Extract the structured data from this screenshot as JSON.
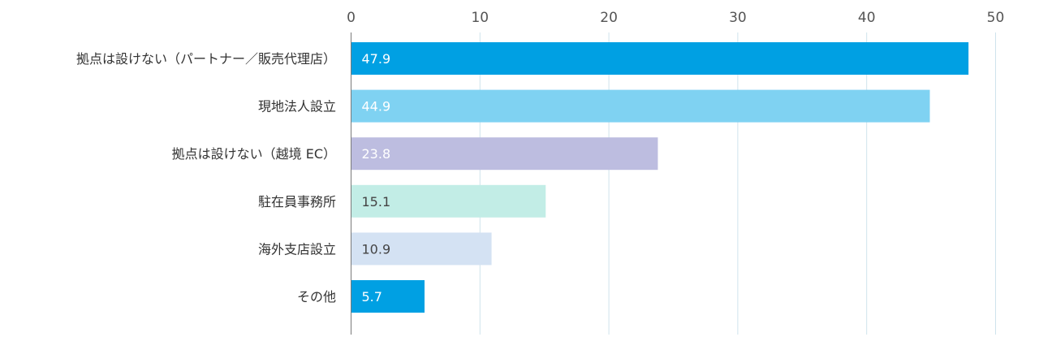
{
  "chart_data": {
    "type": "bar",
    "orientation": "horizontal",
    "categories": [
      "拠点は設けない（パートナー／販売代理店）",
      "現地法人設立",
      "拠点は設けない（越境 EC）",
      "駐在員事務所",
      "海外支店設立",
      "その他"
    ],
    "values": [
      47.9,
      44.9,
      23.8,
      15.1,
      10.9,
      5.7
    ],
    "value_labels": [
      "47.9",
      "44.9",
      "23.8",
      "15.1",
      "10.9",
      "5.7"
    ],
    "bar_colors": [
      "#00a0e3",
      "#7fd2f2",
      "#bdbde0",
      "#c2ede6",
      "#d4e2f3",
      "#00a0e3"
    ],
    "label_colors": [
      "#ffffff",
      "#ffffff",
      "#ffffff",
      "#444444",
      "#444444",
      "#ffffff"
    ],
    "xlim": [
      0,
      50
    ],
    "x_ticks": [
      0,
      10,
      20,
      30,
      40,
      50
    ],
    "x_tick_labels": [
      "0",
      "10",
      "20",
      "30",
      "40",
      "50"
    ],
    "x_axis_position": "top",
    "grid": true,
    "grid_color": "#cfe3ec",
    "title": "",
    "xlabel": "",
    "ylabel": ""
  }
}
